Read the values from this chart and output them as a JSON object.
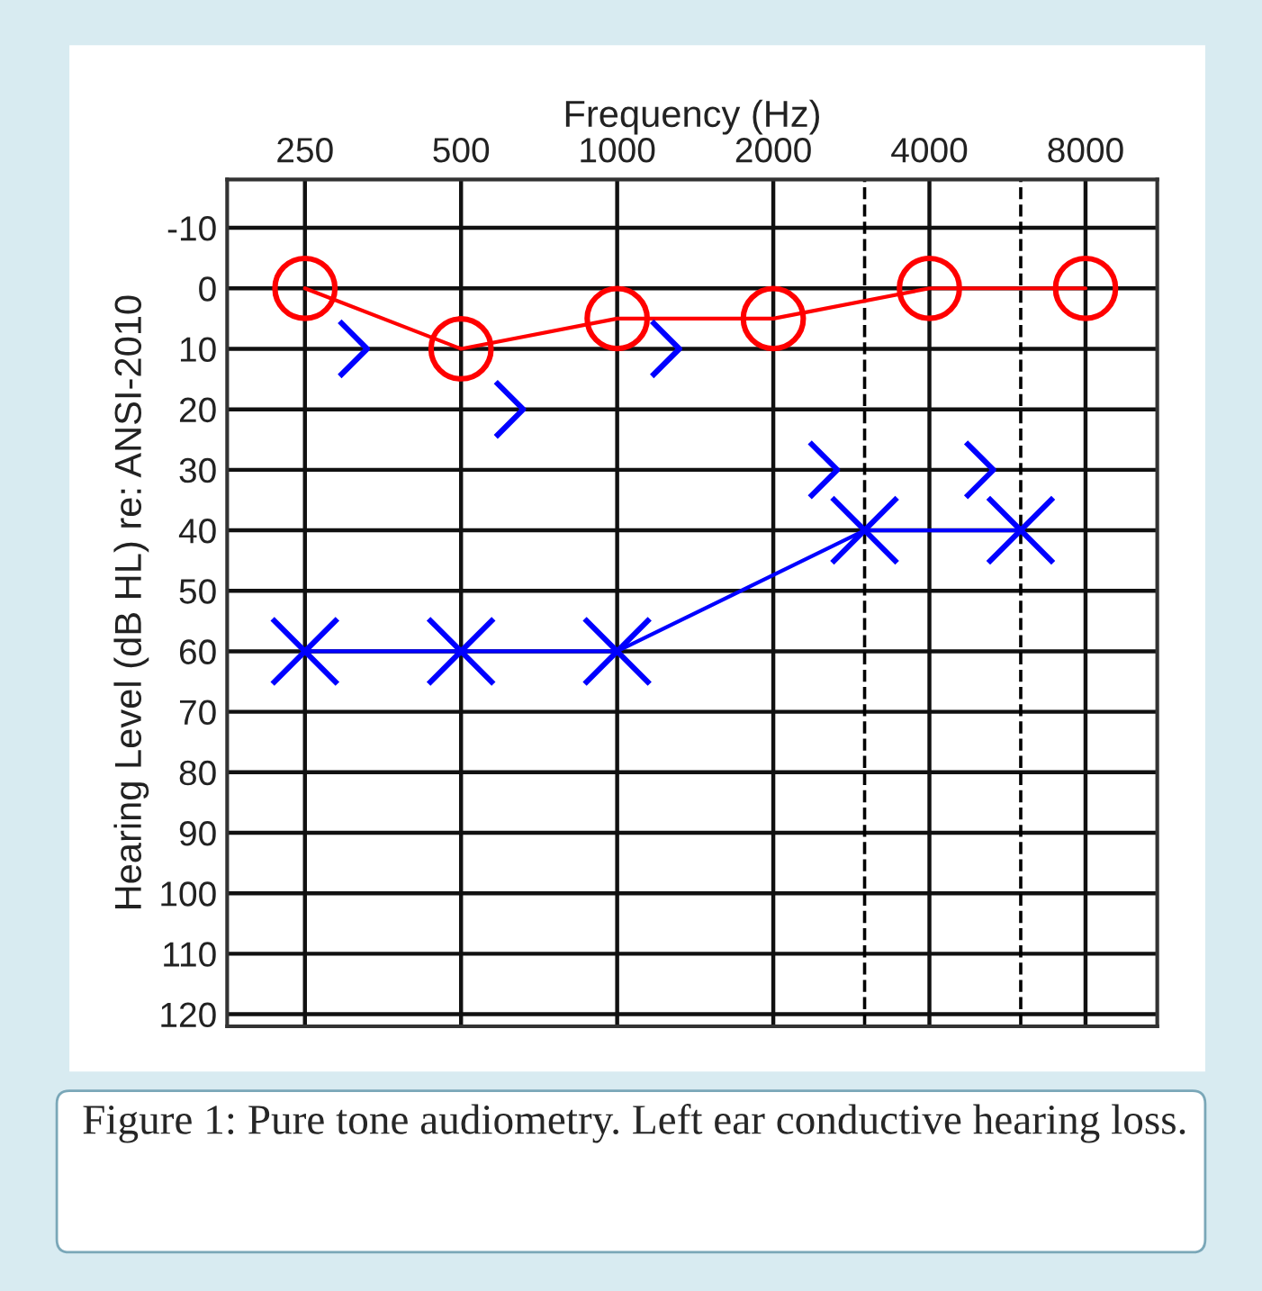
{
  "chart_data": {
    "type": "line",
    "xlabel": "Frequency (Hz)",
    "ylabel": "Hearing Level (dB HL) re: ANSI-2010",
    "log": "x",
    "xlim": [
      177,
      11000
    ],
    "xticks": [
      250,
      500,
      1000,
      2000,
      4000,
      8000
    ],
    "ylim": [
      122,
      -18
    ],
    "yticks": [
      -10,
      0,
      10,
      20,
      30,
      40,
      50,
      60,
      70,
      80,
      90,
      100,
      110,
      120
    ],
    "grid": true,
    "ref_lines": [
      {
        "axis": "x",
        "value": 3000,
        "line_style": "dashed",
        "color": "#000000"
      },
      {
        "axis": "x",
        "value": 6000,
        "line_style": "dashed",
        "color": "#000000"
      }
    ],
    "series": [
      {
        "color": "#ff0000",
        "marker": "circle",
        "x": [
          250,
          500,
          1000,
          2000,
          4000,
          8000
        ],
        "values": [
          0,
          10,
          5,
          5,
          0,
          0
        ]
      },
      {
        "color": "#0000ff",
        "marker": "cross",
        "x": [
          250,
          500,
          1000,
          3000,
          6000
        ],
        "values": [
          60,
          60,
          60,
          40,
          40
        ]
      },
      {
        "type": "scatter",
        "color": "#0000ff",
        "x": [
          310,
          620,
          1240,
          2500,
          5000
        ],
        "values": [
          10,
          20,
          10,
          30,
          30
        ]
      }
    ],
    "annotations": [
      "Figure 1: Pure tone audiometry. Left ear conductive hearing loss."
    ]
  }
}
